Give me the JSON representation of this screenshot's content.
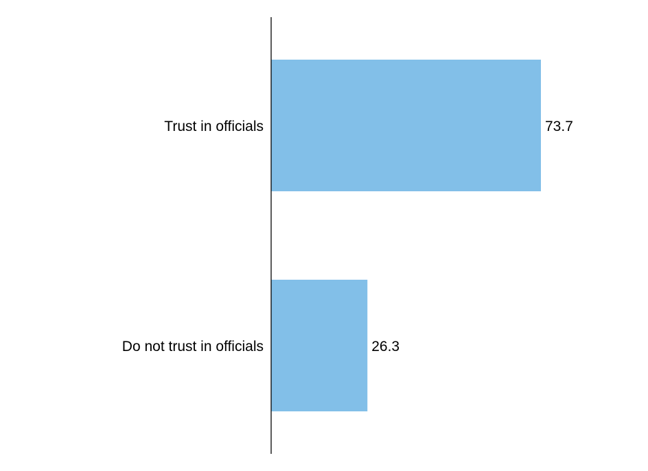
{
  "chart_data": {
    "type": "bar",
    "orientation": "horizontal",
    "categories": [
      "Trust in officials",
      "Do not trust in officials"
    ],
    "values": [
      73.7,
      26.3
    ],
    "value_labels": [
      "73.7",
      "26.3"
    ],
    "xlim": [
      0,
      100
    ],
    "bar_color": "#82bfe8",
    "axis_color": "#000000",
    "grid": false,
    "legend": false
  }
}
